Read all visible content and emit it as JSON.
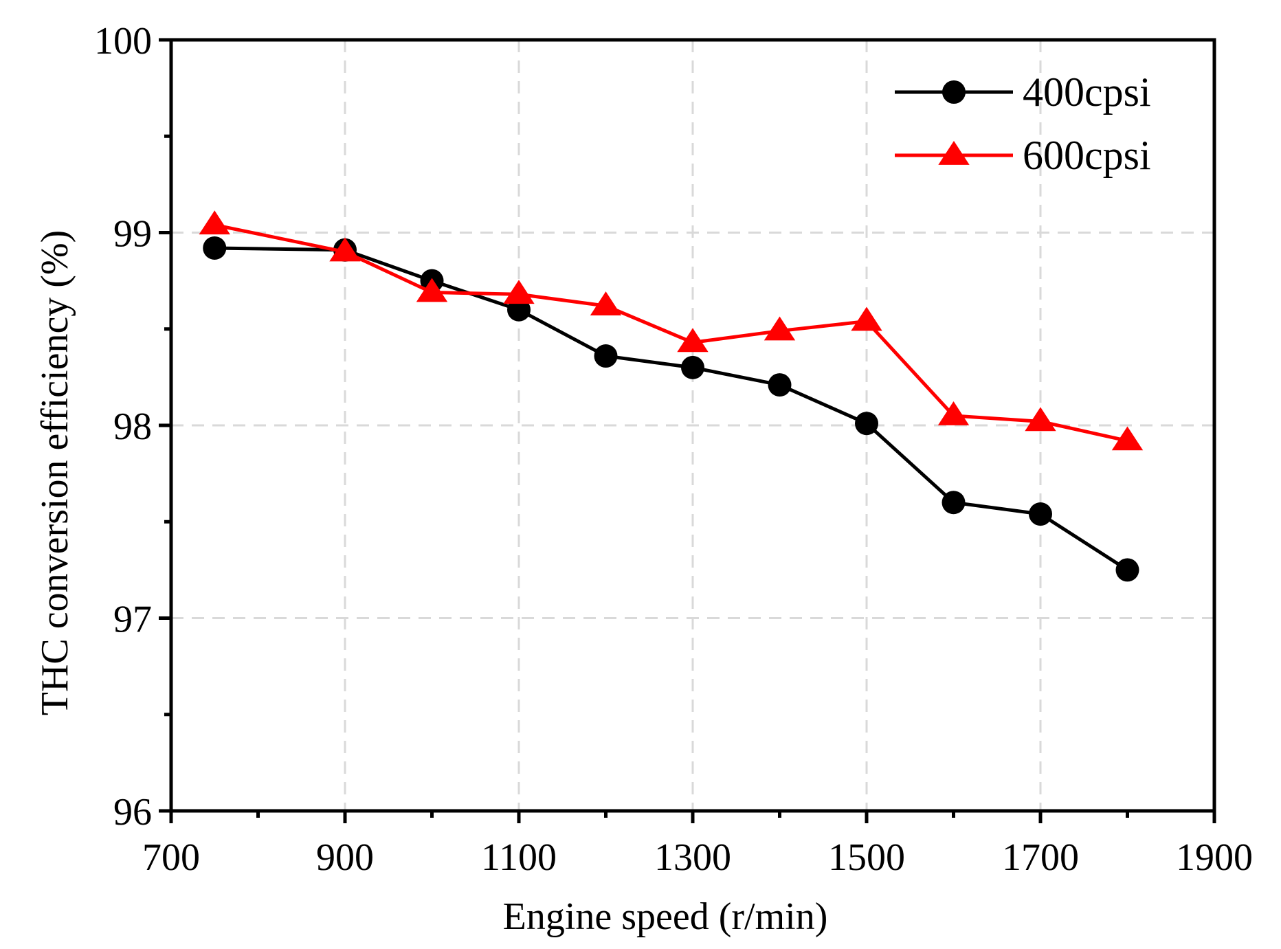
{
  "chart_data": {
    "type": "line",
    "title": "",
    "xlabel": "Engine speed (r/min)",
    "ylabel": "THC conversion efficiency (%)",
    "xlim": [
      700,
      1900
    ],
    "ylim": [
      96,
      100
    ],
    "xticks": [
      700,
      900,
      1100,
      1300,
      1500,
      1700,
      1900
    ],
    "yticks": [
      96,
      97,
      98,
      99,
      100
    ],
    "x_tick_labels": [
      "700",
      "900",
      "1100",
      "1300",
      "1500",
      "1700",
      "1900"
    ],
    "y_tick_labels": [
      "96",
      "97",
      "98",
      "99",
      "100"
    ],
    "x_minor_step": 100,
    "y_minor_step": 0.5,
    "grid": true,
    "legend_position": "top-right",
    "series": [
      {
        "name": "400cpsi",
        "color": "#000000",
        "marker": "circle",
        "x": [
          750,
          900,
          1000,
          1100,
          1200,
          1300,
          1400,
          1500,
          1600,
          1700,
          1800
        ],
        "y": [
          98.92,
          98.91,
          98.75,
          98.6,
          98.36,
          98.3,
          98.21,
          98.01,
          97.6,
          97.54,
          97.25
        ]
      },
      {
        "name": "600cpsi",
        "color": "#ff0000",
        "marker": "triangle",
        "x": [
          750,
          900,
          1000,
          1100,
          1200,
          1300,
          1400,
          1500,
          1600,
          1700,
          1800
        ],
        "y": [
          99.04,
          98.9,
          98.69,
          98.68,
          98.62,
          98.43,
          98.49,
          98.54,
          98.05,
          98.02,
          97.92
        ]
      }
    ]
  }
}
